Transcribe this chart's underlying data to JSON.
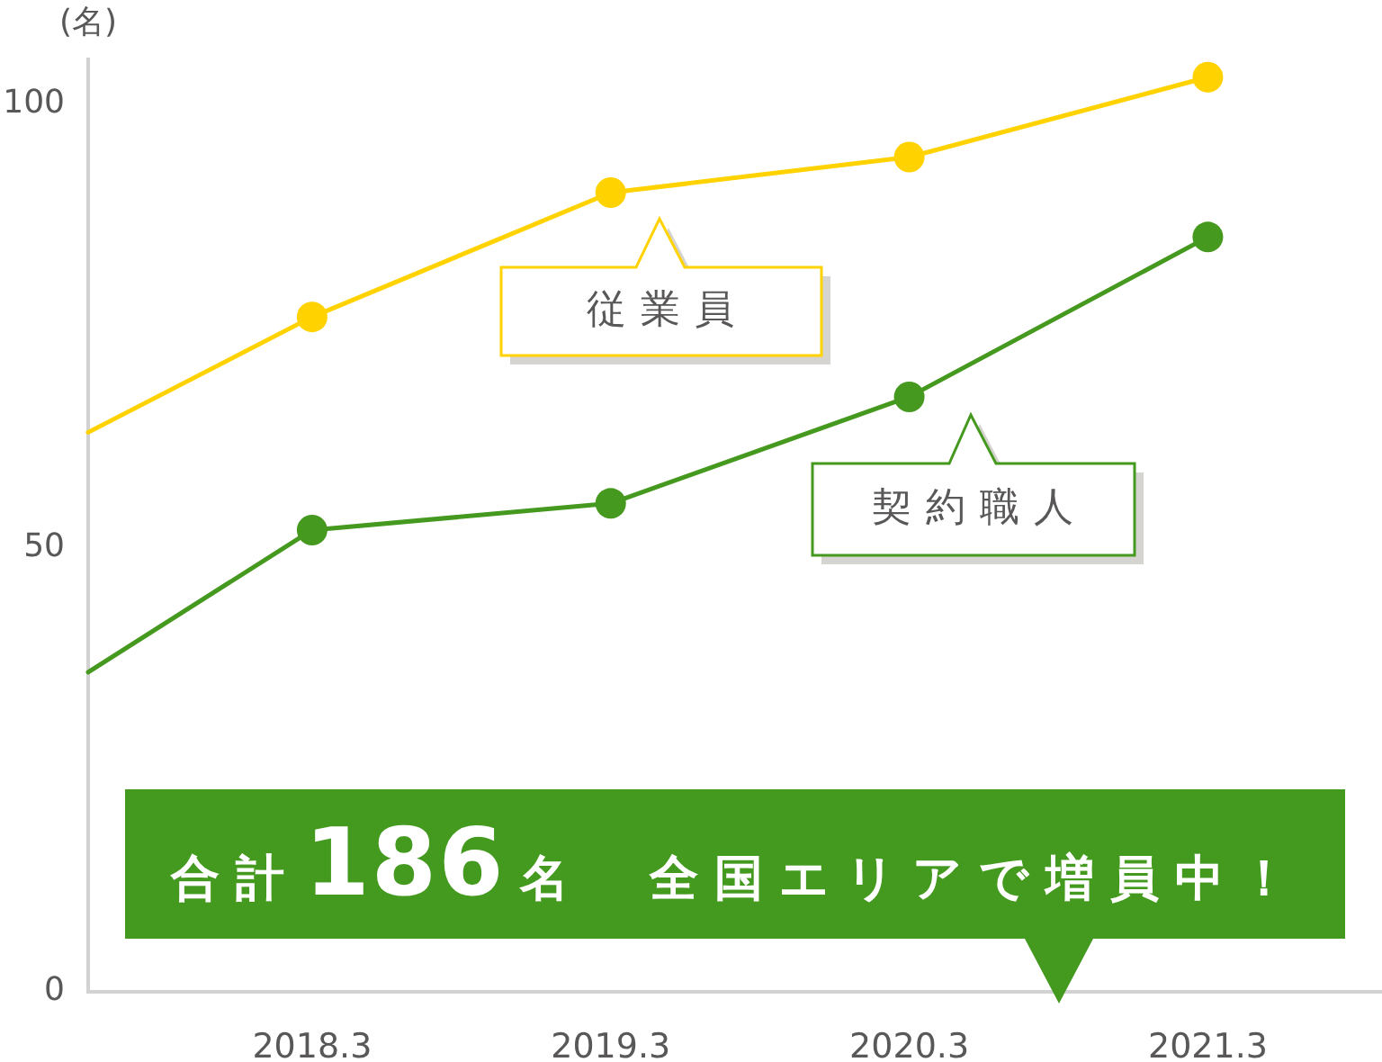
{
  "chart_data": {
    "type": "line",
    "ylabel": "(名)",
    "x": [
      "2017-06",
      "2018-03",
      "2019-03",
      "2020-03",
      "2021-03"
    ],
    "xlim": [
      "2017-06",
      "2021-10"
    ],
    "xticks": [
      {
        "value": "2018-03",
        "label": "2018.3"
      },
      {
        "value": "2019-03",
        "label": "2019.3"
      },
      {
        "value": "2020-03",
        "label": "2020.3"
      },
      {
        "value": "2021-03",
        "label": "2021.3"
      }
    ],
    "ylim": [
      0,
      105
    ],
    "yticks": [
      0,
      50,
      100
    ],
    "series": [
      {
        "name": "従業員",
        "color": "#ffd200",
        "values": [
          63,
          76,
          90,
          94,
          103
        ]
      },
      {
        "name": "契約職人",
        "color": "#45991f",
        "values": [
          36,
          52,
          55,
          67,
          85
        ]
      }
    ],
    "marker": "circle",
    "annotations": [
      "合計186名　全国エリアで増員中！"
    ]
  }
}
